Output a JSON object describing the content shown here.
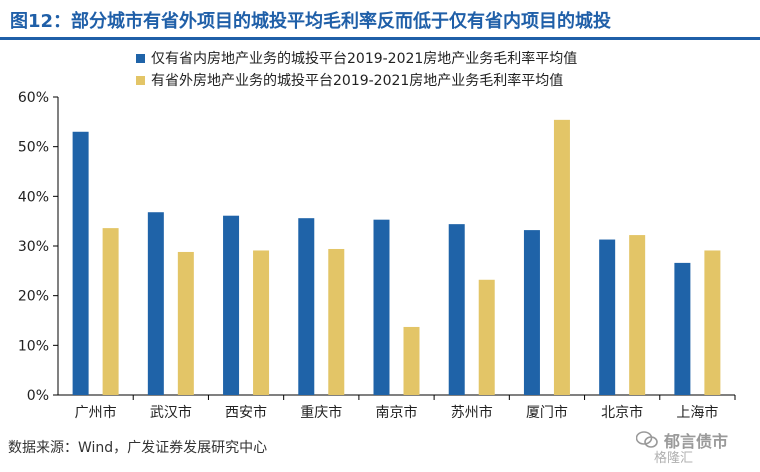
{
  "header": {
    "title": "图12：部分城市有省外项目的城投平均毛利率反而低于仅有省内项目的城投"
  },
  "colors": {
    "series1": "#1f63a8",
    "series2": "#e3c567",
    "title": "#1f5fa8",
    "axis": "#000000"
  },
  "chart_data": {
    "type": "bar",
    "categories": [
      "广州市",
      "武汉市",
      "西安市",
      "重庆市",
      "南京市",
      "苏州市",
      "厦门市",
      "北京市",
      "上海市"
    ],
    "series": [
      {
        "name": "仅有省内房地产业务的城投平台2019-2021房地产业务毛利率平均值",
        "values": [
          53.0,
          36.8,
          36.1,
          35.6,
          35.3,
          34.4,
          33.2,
          31.3,
          26.6
        ]
      },
      {
        "name": "有省外房地产业务的城投平台2019-2021房地产业务毛利率平均值",
        "values": [
          33.6,
          28.8,
          29.1,
          29.4,
          13.7,
          23.2,
          55.4,
          32.2,
          29.1
        ]
      }
    ],
    "ylim": [
      0,
      60
    ],
    "yticks": [
      "0%",
      "10%",
      "20%",
      "30%",
      "40%",
      "50%",
      "60%"
    ],
    "grid": false,
    "legend_position": "top"
  },
  "footer": {
    "source": "数据来源：Wind，广发证券发展研究中心"
  },
  "watermark": {
    "text": "郁言债市",
    "sub": "格隆汇"
  }
}
